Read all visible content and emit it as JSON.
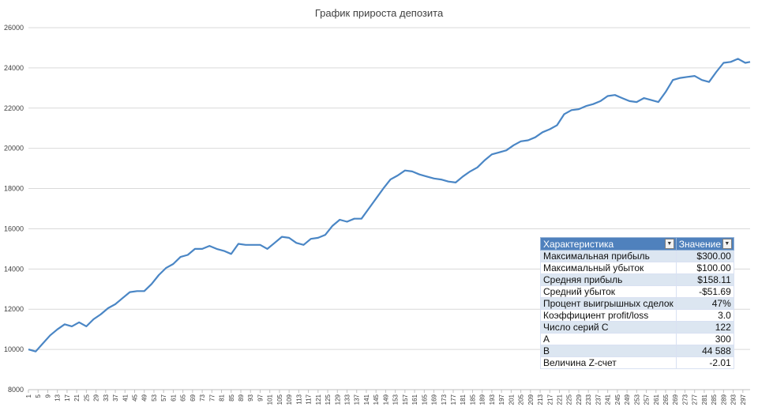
{
  "chart_data": {
    "type": "line",
    "title": "График прироста депозита",
    "xlabel": "",
    "ylabel": "",
    "ylim": [
      8000,
      26000
    ],
    "yticks": [
      8000,
      10000,
      12000,
      14000,
      16000,
      18000,
      20000,
      22000,
      24000,
      26000
    ],
    "xlim": [
      1,
      300
    ],
    "xticks": [
      1,
      5,
      9,
      13,
      17,
      21,
      25,
      29,
      33,
      37,
      41,
      45,
      49,
      53,
      57,
      61,
      65,
      69,
      73,
      77,
      81,
      85,
      89,
      93,
      97,
      101,
      105,
      109,
      113,
      117,
      121,
      125,
      129,
      133,
      137,
      141,
      145,
      149,
      153,
      157,
      161,
      165,
      169,
      173,
      177,
      181,
      185,
      189,
      193,
      197,
      201,
      205,
      209,
      213,
      217,
      221,
      225,
      229,
      233,
      237,
      241,
      245,
      249,
      253,
      257,
      261,
      265,
      269,
      273,
      277,
      281,
      285,
      289,
      293,
      297
    ],
    "grid": true,
    "line_color": "#4a86c5",
    "series": [
      {
        "x": [
          1,
          4,
          7,
          10,
          13,
          16,
          19,
          22,
          25,
          28,
          31,
          34,
          37,
          40,
          43,
          46,
          49,
          52,
          55,
          58,
          61,
          64,
          67,
          70,
          73,
          76,
          79,
          82,
          85,
          88,
          91,
          94,
          97,
          100,
          103,
          106,
          109,
          112,
          115,
          118,
          121,
          124,
          127,
          130,
          133,
          136,
          139,
          142,
          145,
          148,
          151,
          154,
          157,
          160,
          163,
          166,
          169,
          172,
          175,
          178,
          181,
          184,
          187,
          190,
          193,
          196,
          199,
          202,
          205,
          208,
          211,
          214,
          217,
          220,
          223,
          226,
          229,
          232,
          235,
          238,
          241,
          244,
          247,
          250,
          253,
          256,
          259,
          262,
          265,
          268,
          271,
          274,
          277,
          280,
          283,
          286,
          289,
          292,
          295,
          298,
          300
        ],
        "y": [
          10000,
          9900,
          10300,
          10700,
          11000,
          11250,
          11150,
          11350,
          11150,
          11500,
          11750,
          12050,
          12250,
          12550,
          12850,
          12900,
          12900,
          13250,
          13700,
          14050,
          14250,
          14600,
          14700,
          15000,
          15000,
          15150,
          15000,
          14900,
          14750,
          15250,
          15200,
          15200,
          15200,
          15000,
          15300,
          15600,
          15550,
          15300,
          15200,
          15500,
          15550,
          15700,
          16150,
          16450,
          16350,
          16500,
          16500,
          17000,
          17500,
          18000,
          18450,
          18650,
          18900,
          18850,
          18700,
          18600,
          18500,
          18450,
          18350,
          18300,
          18600,
          18850,
          19050,
          19400,
          19700,
          19800,
          19900,
          20150,
          20350,
          20400,
          20550,
          20800,
          20950,
          21150,
          21700,
          21900,
          21950,
          22100,
          22200,
          22350,
          22600,
          22650,
          22500,
          22350,
          22300,
          22500,
          22400,
          22300,
          22800,
          23400,
          23500,
          23550,
          23600,
          23400,
          23300,
          23800,
          24250,
          24300,
          24450,
          24250,
          24300
        ]
      }
    ]
  },
  "table": {
    "header_name": "Характеристика",
    "header_value": "Значение",
    "rows": [
      {
        "name": "Максимальная прибыль",
        "value": "$300.00"
      },
      {
        "name": "Максимальный убыток",
        "value": "$100.00"
      },
      {
        "name": "Средняя прибыль",
        "value": "$158.11"
      },
      {
        "name": "Средний убыток",
        "value": "-$51.69"
      },
      {
        "name": "Процент выигрышных сделок",
        "value": "47%"
      },
      {
        "name": "Коэффициент profit/loss",
        "value": "3.0"
      },
      {
        "name": "Число серий С",
        "value": "122"
      },
      {
        "name": "А",
        "value": "300"
      },
      {
        "name": "В",
        "value": "44 588"
      },
      {
        "name": "Величина Z-счет",
        "value": "-2.01"
      }
    ]
  }
}
